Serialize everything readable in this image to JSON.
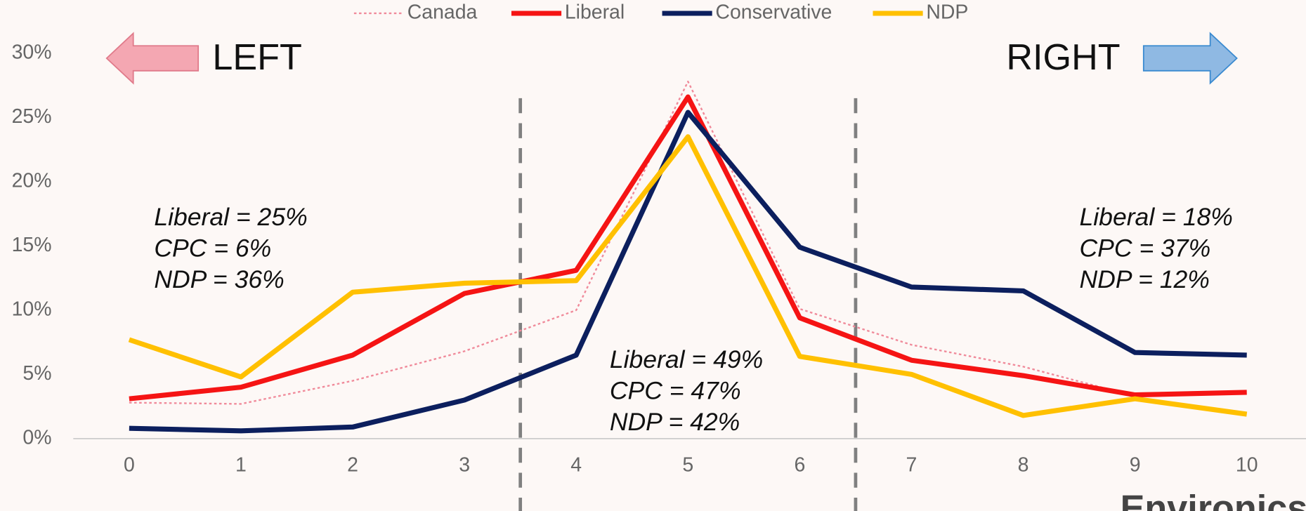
{
  "chart_data": {
    "type": "line",
    "x": [
      0,
      1,
      2,
      3,
      4,
      5,
      6,
      7,
      8,
      9,
      10
    ],
    "xlim": [
      -0.5,
      10.5
    ],
    "xticks": [
      0,
      1,
      2,
      3,
      4,
      5,
      6,
      7,
      8,
      9,
      10
    ],
    "ylim": [
      0,
      30
    ],
    "yticks": [
      {
        "value": 0,
        "label": "0%"
      },
      {
        "value": 5,
        "label": "5%"
      },
      {
        "value": 10,
        "label": "10%"
      },
      {
        "value": 15,
        "label": "15%"
      },
      {
        "value": 20,
        "label": "20%"
      },
      {
        "value": 25,
        "label": "25%"
      },
      {
        "value": 30,
        "label": "30%"
      }
    ],
    "series": [
      {
        "name": "Canada",
        "color": "#f08a9a",
        "dotted": true,
        "values": [
          2.8,
          2.7,
          4.5,
          6.8,
          10,
          27.8,
          10.1,
          7.3,
          5.6,
          3.3,
          3.5
        ]
      },
      {
        "name": "Liberal",
        "color": "#f51414",
        "values": [
          3.1,
          4.0,
          6.5,
          11.3,
          13.1,
          26.6,
          9.4,
          6.1,
          4.9,
          3.4,
          3.6
        ]
      },
      {
        "name": "Conservative",
        "color": "#0c1f5e",
        "values": [
          0.8,
          0.6,
          0.9,
          3.0,
          6.5,
          25.4,
          14.9,
          11.8,
          11.5,
          6.7,
          6.5
        ]
      },
      {
        "name": "NDP",
        "color": "#ffc000",
        "values": [
          7.7,
          4.8,
          11.4,
          12.1,
          12.3,
          23.5,
          6.4,
          5.0,
          1.8,
          3.1,
          1.9
        ]
      }
    ],
    "dividers": [
      3.5,
      6.5
    ],
    "arrow_labels": [
      "LEFT",
      "RIGHT"
    ],
    "annotations": [
      [
        "Liberal = 25%",
        "CPC = 6%",
        "NDP = 36%"
      ],
      [
        "Liberal = 49%",
        "CPC = 47%",
        "NDP = 42%"
      ],
      [
        "Liberal = 18%",
        "CPC = 37%",
        "NDP = 12%"
      ]
    ],
    "logo": "Environics"
  }
}
